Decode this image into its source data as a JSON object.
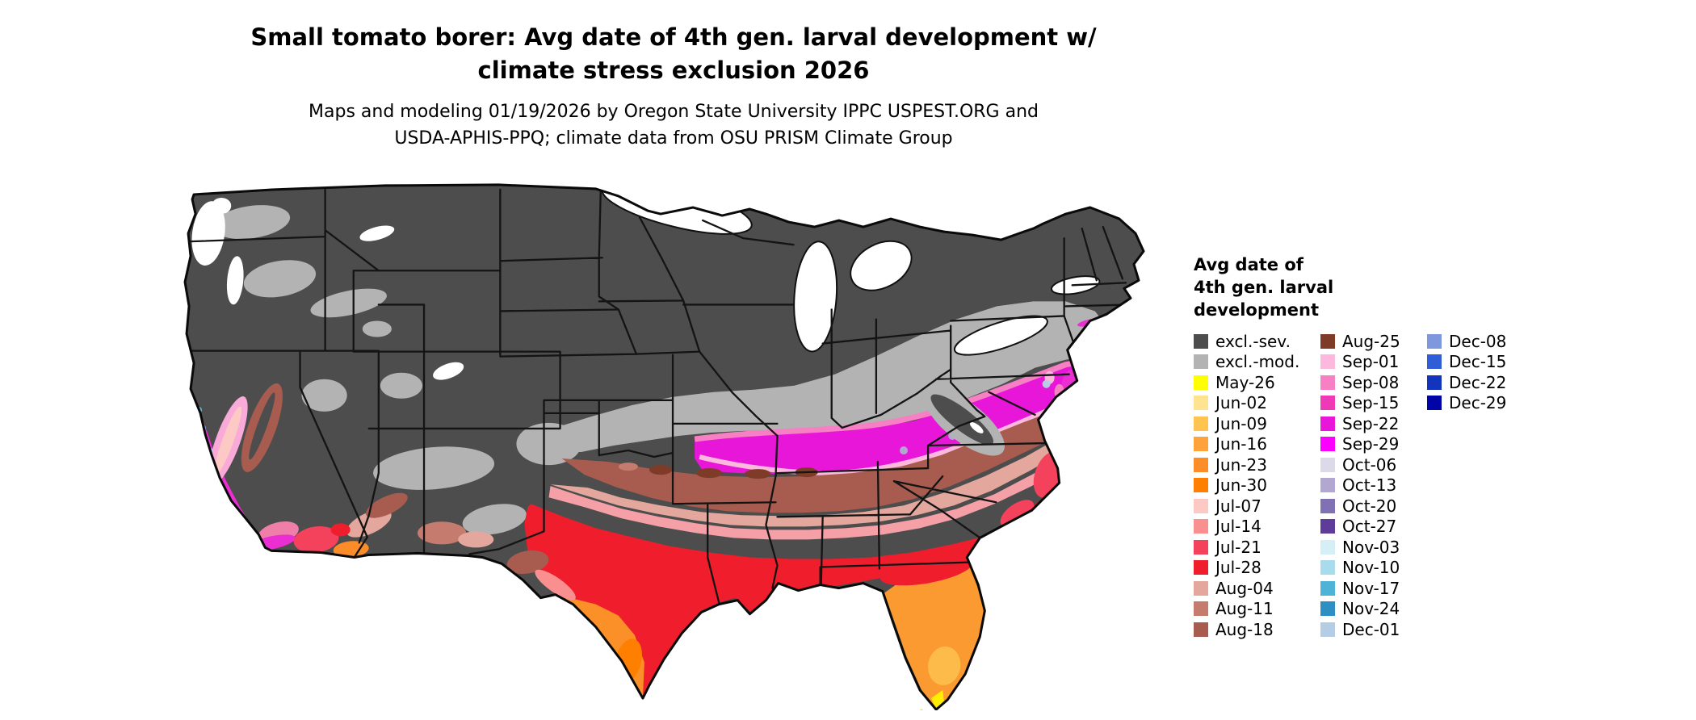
{
  "title": {
    "line1": "Small tomato borer: Avg date of 4th gen. larval development w/",
    "line2": "climate stress exclusion 2026"
  },
  "subtitle": {
    "line1": "Maps and modeling 01/19/2026 by Oregon State University IPPC USPEST.ORG and",
    "line2": "USDA-APHIS-PPQ; climate data from OSU PRISM Climate Group"
  },
  "legend": {
    "title_lines": [
      "Avg date of",
      "4th gen. larval",
      "development"
    ],
    "columns": [
      {
        "entries": [
          {
            "label": "excl.-sev.",
            "color": "#4d4d4d"
          },
          {
            "label": "excl.-mod.",
            "color": "#b3b3b3"
          },
          {
            "label": "May-26",
            "color": "#ffff00"
          },
          {
            "label": "Jun-02",
            "color": "#fee391"
          },
          {
            "label": "Jun-09",
            "color": "#fec44f"
          },
          {
            "label": "Jun-16",
            "color": "#fea33c"
          },
          {
            "label": "Jun-23",
            "color": "#fd8d27"
          },
          {
            "label": "Jun-30",
            "color": "#ff7f00"
          },
          {
            "label": "Jul-07",
            "color": "#fcc9c5"
          },
          {
            "label": "Jul-14",
            "color": "#f98f8f"
          },
          {
            "label": "Jul-21",
            "color": "#f4425c"
          },
          {
            "label": "Jul-28",
            "color": "#f01e2c"
          },
          {
            "label": "Aug-04",
            "color": "#e3a79d"
          },
          {
            "label": "Aug-11",
            "color": "#c67b6f"
          },
          {
            "label": "Aug-18",
            "color": "#a85c4f"
          }
        ]
      },
      {
        "entries": [
          {
            "label": "Aug-25",
            "color": "#7e3b28"
          },
          {
            "label": "Sep-01",
            "color": "#fcb9dd"
          },
          {
            "label": "Sep-08",
            "color": "#f77fc4"
          },
          {
            "label": "Sep-15",
            "color": "#ef3ab8"
          },
          {
            "label": "Sep-22",
            "color": "#e816d8"
          },
          {
            "label": "Sep-29",
            "color": "#fb00ff"
          },
          {
            "label": "Oct-06",
            "color": "#dcd9e8"
          },
          {
            "label": "Oct-13",
            "color": "#b1a7d0"
          },
          {
            "label": "Oct-20",
            "color": "#8171b3"
          },
          {
            "label": "Oct-27",
            "color": "#5e3c99"
          },
          {
            "label": "Nov-03",
            "color": "#d6eff7"
          },
          {
            "label": "Nov-10",
            "color": "#a8dcec"
          },
          {
            "label": "Nov-17",
            "color": "#4fb3d7"
          },
          {
            "label": "Nov-24",
            "color": "#2d8fc2"
          },
          {
            "label": "Dec-01",
            "color": "#b4cde4"
          }
        ]
      },
      {
        "entries": [
          {
            "label": "Dec-08",
            "color": "#7f97dd"
          },
          {
            "label": "Dec-15",
            "color": "#2f5ed6"
          },
          {
            "label": "Dec-22",
            "color": "#1335bd"
          },
          {
            "label": "Dec-29",
            "color": "#0105a8"
          }
        ]
      }
    ]
  },
  "map": {
    "kind": "conus-choropleth",
    "excluded_severe_color": "#4d4d4d",
    "excluded_moderate_color": "#b3b3b3",
    "outline_color": "#0a0a0a"
  }
}
